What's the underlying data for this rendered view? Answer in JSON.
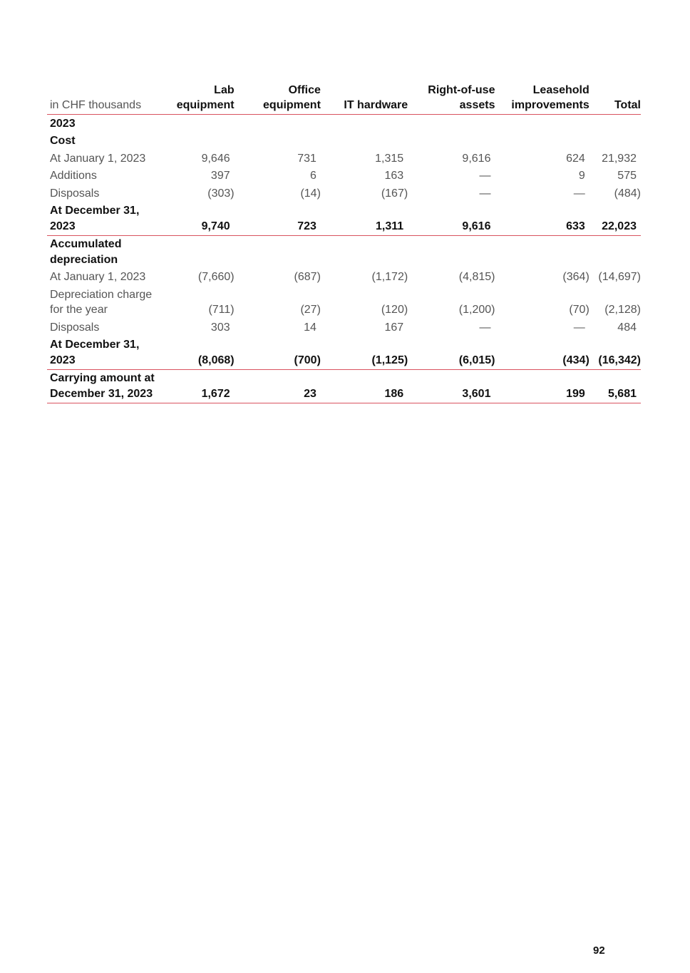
{
  "table": {
    "unit_label": "in CHF thousands",
    "columns": [
      [
        "Lab",
        "equipment"
      ],
      [
        "Office",
        "equipment"
      ],
      [
        "",
        "IT hardware"
      ],
      [
        "Right-of-use",
        "assets"
      ],
      [
        "Leasehold",
        "improvements"
      ],
      [
        "",
        "Total"
      ]
    ],
    "rows": [
      {
        "label": "2023",
        "bold": true,
        "values": []
      },
      {
        "label": "Cost",
        "bold": true,
        "values": []
      },
      {
        "label": "At January 1, 2023",
        "values": [
          "9,646",
          "731",
          "1,315",
          "9,616",
          "624",
          "21,932"
        ]
      },
      {
        "label": "Additions",
        "values": [
          "397",
          "6",
          "163",
          "—",
          "9",
          "575"
        ]
      },
      {
        "label": "Disposals",
        "values": [
          "(303)",
          "(14)",
          "(167)",
          "—",
          "—",
          "(484)"
        ]
      },
      {
        "label": "At December 31, 2023",
        "bold": true,
        "rule": true,
        "values": [
          "9,740",
          "723",
          "1,311",
          "9,616",
          "633",
          "22,023"
        ]
      },
      {
        "label": "Accumulated depreciation",
        "bold": true,
        "values": []
      },
      {
        "label": "At January 1, 2023",
        "values": [
          "(7,660)",
          "(687)",
          "(1,172)",
          "(4,815)",
          "(364)",
          "(14,697)"
        ]
      },
      {
        "label": "Depreciation charge for the year",
        "values": [
          "(711)",
          "(27)",
          "(120)",
          "(1,200)",
          "(70)",
          "(2,128)"
        ]
      },
      {
        "label": "Disposals",
        "values": [
          "303",
          "14",
          "167",
          "—",
          "—",
          "484"
        ]
      },
      {
        "label": "At December 31, 2023",
        "bold": true,
        "rule": true,
        "values": [
          "(8,068)",
          "(700)",
          "(1,125)",
          "(6,015)",
          "(434)",
          "(16,342)"
        ]
      },
      {
        "label": "Carrying amount at December 31, 2023",
        "bold": true,
        "rule": true,
        "values": [
          "1,672",
          "23",
          "186",
          "3,601",
          "199",
          "5,681"
        ]
      }
    ]
  },
  "page_number": "92",
  "colors": {
    "rule": "#d9535f"
  }
}
